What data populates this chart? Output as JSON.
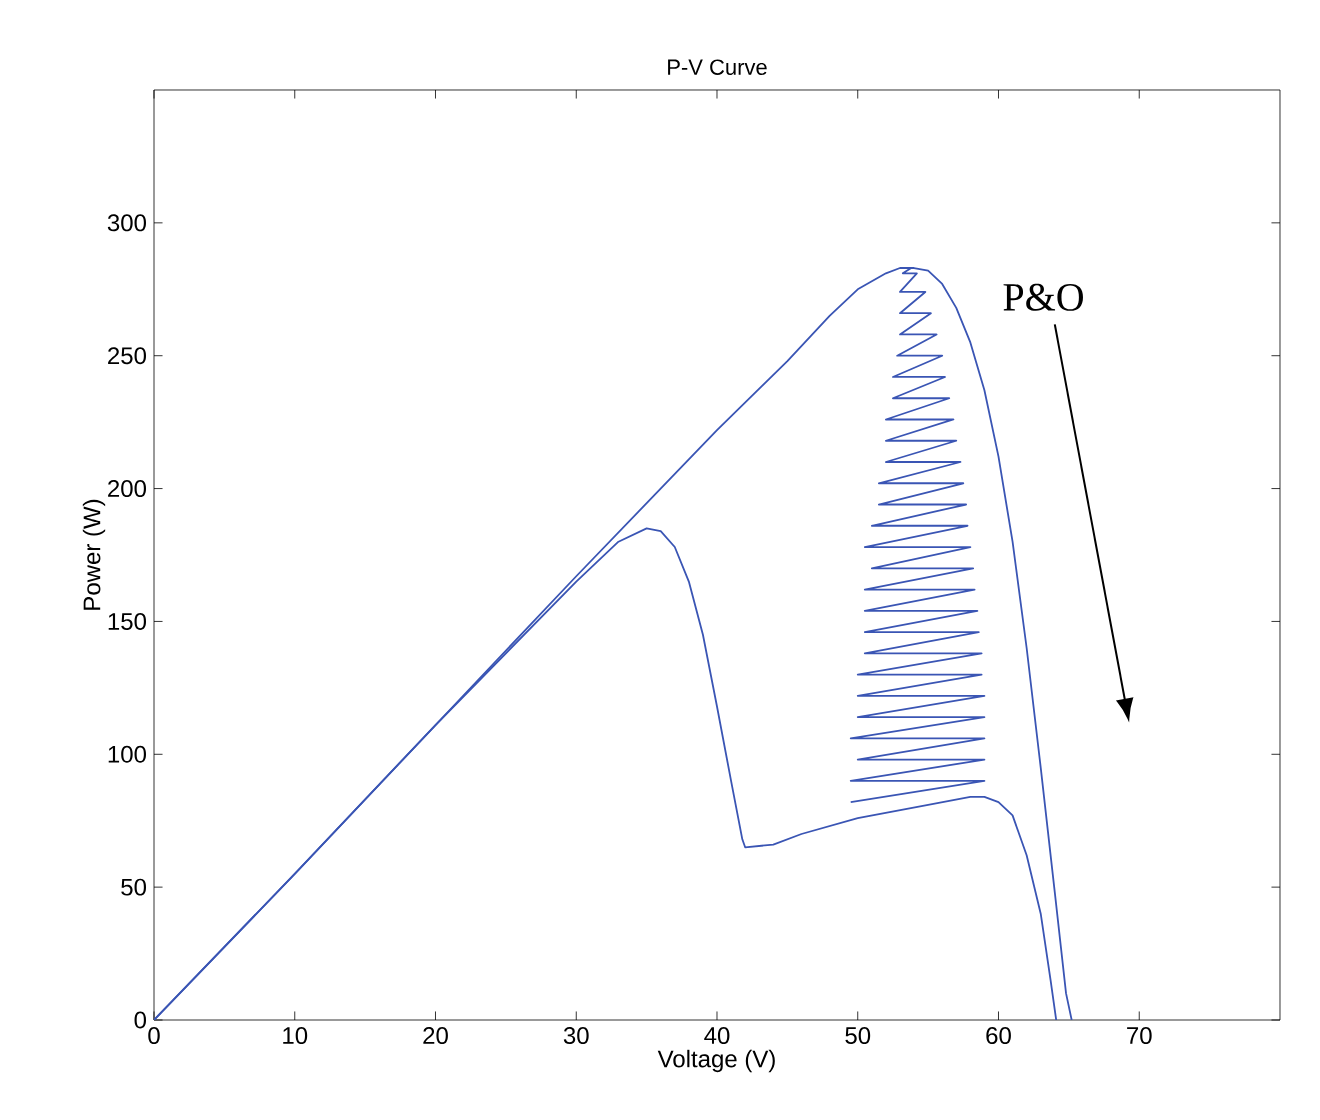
{
  "chart_data": {
    "type": "line",
    "title": "P-V Curve",
    "xlabel": "Voltage (V)",
    "ylabel": "Power (W)",
    "xlim": [
      0,
      80
    ],
    "ylim": [
      0,
      350
    ],
    "xticks": [
      0,
      10,
      20,
      30,
      40,
      50,
      60,
      70
    ],
    "yticks": [
      0,
      50,
      100,
      150,
      200,
      250,
      300
    ],
    "grid": false,
    "marker": "none",
    "line_style": "solid",
    "annotations": [
      "P&O"
    ],
    "series": [
      {
        "color": "#3a55b4",
        "x": [
          0,
          10,
          20,
          30,
          40,
          45,
          48,
          50,
          52,
          53,
          54,
          55,
          56,
          57,
          58,
          59,
          60,
          61,
          62,
          63,
          64,
          64.8,
          65.2
        ],
        "values": [
          0,
          55,
          111,
          167,
          222,
          248,
          265,
          275,
          281,
          283,
          283,
          282,
          277,
          268,
          255,
          237,
          212,
          180,
          140,
          95,
          48,
          10,
          0
        ]
      },
      {
        "color": "#3a55b4",
        "x": [
          0,
          10,
          20,
          30,
          33,
          35,
          36,
          37,
          38,
          39,
          40,
          41,
          41.8,
          42,
          44,
          46,
          50,
          55,
          58,
          59,
          60,
          61,
          62,
          63,
          63.7,
          64.1
        ],
        "values": [
          0,
          55,
          111,
          165,
          180,
          185,
          184,
          178,
          165,
          145,
          118,
          90,
          68,
          65,
          66,
          70,
          76,
          81,
          84,
          84,
          82,
          77,
          62,
          40,
          15,
          0
        ]
      },
      {
        "color": "#3a55b4",
        "x": [
          49.5,
          59,
          49.5,
          59,
          50,
          59,
          49.5,
          59,
          50,
          59,
          50,
          58.8,
          50,
          58.8,
          50.5,
          58.6,
          50.5,
          58.5,
          50.5,
          58.3,
          50.5,
          58.2,
          51,
          58,
          50.5,
          57.8,
          51,
          57.7,
          51.5,
          57.5,
          51.5,
          57.3,
          52,
          57,
          52,
          56.8,
          52,
          56.5,
          52.5,
          56.2,
          52.5,
          56,
          52.8,
          55.6,
          53,
          55.2,
          53,
          54.8,
          53,
          54.2,
          53.2,
          53.8
        ],
        "values": [
          82,
          90,
          90,
          98,
          98,
          106,
          106,
          114,
          114,
          122,
          122,
          130,
          130,
          138,
          138,
          146,
          146,
          154,
          154,
          162,
          162,
          170,
          170,
          178,
          178,
          186,
          186,
          194,
          194,
          202,
          202,
          210,
          210,
          218,
          218,
          226,
          226,
          234,
          234,
          242,
          242,
          250,
          250,
          258,
          258,
          266,
          266,
          274,
          274,
          281,
          281,
          283
        ]
      }
    ]
  }
}
